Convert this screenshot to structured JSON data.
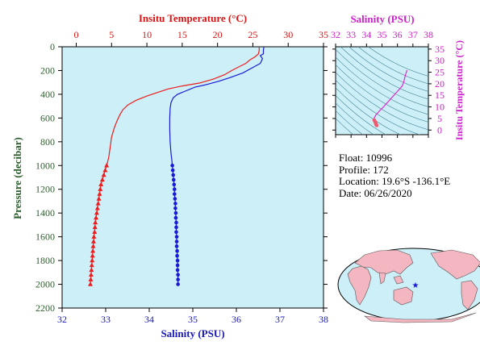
{
  "colors": {
    "temperature": "#ee1c1c",
    "salinity": "#1a1ad6",
    "ts_curve": "#e02ad0",
    "plot_bg": "#cdeff8",
    "map_land": "#f4b6c0",
    "axis_pressure": "#2e5e2e",
    "axis_temp_main": "#d81414",
    "axis_sal_main": "#1818b8",
    "axis_ts": "#cc22cc",
    "contours": "#3f7f8f"
  },
  "labels": {
    "temp_axis_title": "Insitu Temperature (°C)",
    "sal_axis_title": "Salinity (PSU)",
    "pressure_axis_title": "Pressure (decibar)",
    "ts_sal_title": "Salinity (PSU)",
    "ts_temp_title": "Insitu Temperature (°C)"
  },
  "info": {
    "float_line": "Float:  10996",
    "profile_line": "Profile:  172",
    "location_line": "Location:  19.6°S  -136.1°E",
    "date_line": "Date:  06/26/2020"
  },
  "map": {
    "marker": "star"
  },
  "chart_data": [
    {
      "type": "line",
      "title": "",
      "x_axis_top": {
        "label": "Insitu Temperature (°C)",
        "ticks": [
          "0",
          "5",
          "10",
          "15",
          "20",
          "25",
          "30",
          "35"
        ],
        "range": [
          -2,
          35
        ]
      },
      "x_axis_bottom": {
        "label": "Salinity (PSU)",
        "ticks": [
          "32",
          "33",
          "34",
          "35",
          "36",
          "37",
          "38"
        ],
        "range": [
          32,
          38
        ]
      },
      "y_axis": {
        "label": "Pressure (decibar)",
        "ticks": [
          "0",
          "200",
          "400",
          "600",
          "800",
          "1000",
          "1200",
          "1400",
          "1600",
          "1800",
          "2000",
          "2200"
        ],
        "range": [
          0,
          2200
        ],
        "inverted": true
      },
      "series": [
        {
          "variable": "temperature",
          "marker": "triangle",
          "points": [
            [
              25.9,
              5
            ],
            [
              25.9,
              30
            ],
            [
              25.8,
              60
            ],
            [
              25.3,
              85
            ],
            [
              24.6,
              110
            ],
            [
              24.0,
              140
            ],
            [
              23.0,
              170
            ],
            [
              22.0,
              200
            ],
            [
              21.0,
              235
            ],
            [
              19.5,
              270
            ],
            [
              17.5,
              305
            ],
            [
              15.0,
              330
            ],
            [
              13.0,
              355
            ],
            [
              11.5,
              385
            ],
            [
              10.0,
              415
            ],
            [
              8.5,
              450
            ],
            [
              7.3,
              490
            ],
            [
              6.6,
              530
            ],
            [
              6.2,
              570
            ],
            [
              5.8,
              620
            ],
            [
              5.4,
              680
            ],
            [
              5.0,
              760
            ],
            [
              4.8,
              850
            ],
            [
              4.6,
              930
            ],
            [
              4.4,
              980
            ],
            [
              4.3,
              1000
            ],
            [
              4.1,
              1040
            ],
            [
              3.9,
              1080
            ],
            [
              3.7,
              1120
            ],
            [
              3.5,
              1160
            ],
            [
              3.4,
              1200
            ],
            [
              3.3,
              1240
            ],
            [
              3.2,
              1280
            ],
            [
              3.1,
              1320
            ],
            [
              3.0,
              1360
            ],
            [
              2.9,
              1400
            ],
            [
              2.8,
              1440
            ],
            [
              2.7,
              1480
            ],
            [
              2.65,
              1520
            ],
            [
              2.6,
              1560
            ],
            [
              2.5,
              1600
            ],
            [
              2.45,
              1640
            ],
            [
              2.4,
              1680
            ],
            [
              2.35,
              1720
            ],
            [
              2.3,
              1760
            ],
            [
              2.25,
              1800
            ],
            [
              2.2,
              1840
            ],
            [
              2.15,
              1880
            ],
            [
              2.1,
              1920
            ],
            [
              2.05,
              1960
            ],
            [
              2.0,
              2000
            ]
          ]
        },
        {
          "variable": "salinity",
          "marker": "circle",
          "points": [
            [
              36.63,
              5
            ],
            [
              36.62,
              30
            ],
            [
              36.62,
              60
            ],
            [
              36.55,
              75
            ],
            [
              36.6,
              100
            ],
            [
              36.55,
              140
            ],
            [
              36.35,
              180
            ],
            [
              36.15,
              220
            ],
            [
              35.85,
              260
            ],
            [
              35.6,
              290
            ],
            [
              35.3,
              320
            ],
            [
              35.05,
              340
            ],
            [
              34.85,
              370
            ],
            [
              34.65,
              400
            ],
            [
              34.55,
              430
            ],
            [
              34.5,
              470
            ],
            [
              34.48,
              520
            ],
            [
              34.47,
              600
            ],
            [
              34.47,
              700
            ],
            [
              34.48,
              800
            ],
            [
              34.5,
              900
            ],
            [
              34.52,
              960
            ],
            [
              34.53,
              1000
            ],
            [
              34.54,
              1040
            ],
            [
              34.55,
              1080
            ],
            [
              34.56,
              1120
            ],
            [
              34.57,
              1160
            ],
            [
              34.58,
              1200
            ],
            [
              34.58,
              1240
            ],
            [
              34.59,
              1280
            ],
            [
              34.6,
              1320
            ],
            [
              34.6,
              1360
            ],
            [
              34.61,
              1400
            ],
            [
              34.61,
              1440
            ],
            [
              34.62,
              1480
            ],
            [
              34.62,
              1520
            ],
            [
              34.62,
              1560
            ],
            [
              34.63,
              1600
            ],
            [
              34.63,
              1640
            ],
            [
              34.63,
              1680
            ],
            [
              34.64,
              1720
            ],
            [
              34.64,
              1760
            ],
            [
              34.65,
              1800
            ],
            [
              34.65,
              1840
            ],
            [
              34.65,
              1880
            ],
            [
              34.66,
              1920
            ],
            [
              34.66,
              1960
            ],
            [
              34.66,
              2000
            ]
          ]
        }
      ]
    },
    {
      "type": "scatter",
      "title": "",
      "x_axis": {
        "label": "Salinity (PSU)",
        "ticks": [
          "32",
          "33",
          "34",
          "35",
          "36",
          "37",
          "38"
        ],
        "range": [
          32,
          38
        ]
      },
      "y_axis": {
        "label": "Insitu Temperature (°C)",
        "ticks": [
          "0",
          "5",
          "10",
          "15",
          "20",
          "25",
          "30",
          "35"
        ],
        "range": [
          -2,
          36
        ]
      },
      "series": [
        {
          "variable": "T-S",
          "points": [
            [
              36.6,
              25.9
            ],
            [
              36.6,
              25.5
            ],
            [
              36.55,
              24.5
            ],
            [
              36.5,
              23.5
            ],
            [
              36.45,
              22.0
            ],
            [
              36.4,
              20.5
            ],
            [
              36.3,
              19.0
            ],
            [
              36.1,
              17.5
            ],
            [
              35.9,
              16.0
            ],
            [
              35.7,
              14.5
            ],
            [
              35.5,
              13.0
            ],
            [
              35.3,
              11.5
            ],
            [
              35.1,
              10.0
            ],
            [
              34.95,
              9.0
            ],
            [
              34.8,
              8.0
            ],
            [
              34.7,
              7.2
            ],
            [
              34.6,
              6.5
            ],
            [
              34.55,
              5.8
            ],
            [
              34.5,
              5.2
            ],
            [
              34.48,
              4.7
            ],
            [
              34.5,
              4.3
            ],
            [
              34.53,
              3.9
            ],
            [
              34.56,
              3.5
            ],
            [
              34.58,
              3.2
            ],
            [
              34.6,
              2.9
            ],
            [
              34.61,
              2.6
            ],
            [
              34.62,
              2.4
            ],
            [
              34.64,
              2.2
            ],
            [
              34.66,
              2.0
            ]
          ]
        }
      ]
    }
  ]
}
